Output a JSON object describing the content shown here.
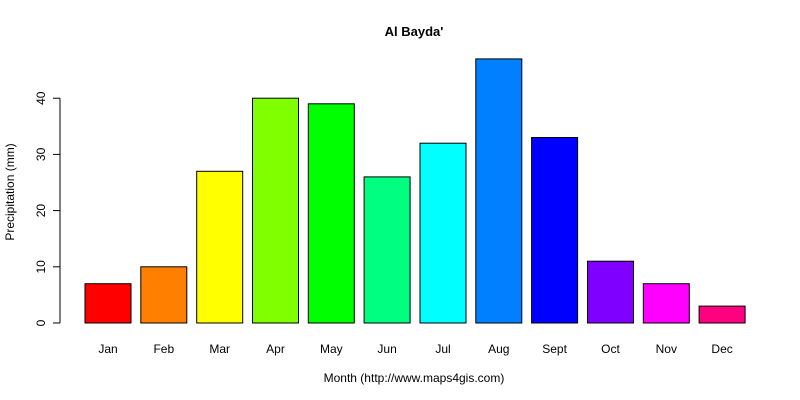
{
  "chart_data": {
    "type": "bar",
    "title": "Al Bayda'",
    "xlabel": "Month (http://www.maps4gis.com)",
    "ylabel": "Precipitation (mm)",
    "categories": [
      "Jan",
      "Feb",
      "Mar",
      "Apr",
      "May",
      "Jun",
      "Jul",
      "Aug",
      "Sept",
      "Oct",
      "Nov",
      "Dec"
    ],
    "values": [
      7,
      10,
      27,
      40,
      39,
      26,
      32,
      47,
      33,
      11,
      7,
      3
    ],
    "colors": [
      "#FF0000",
      "#FF8000",
      "#FFFF00",
      "#80FF00",
      "#00FF00",
      "#00FF80",
      "#00FFFF",
      "#0080FF",
      "#0000FF",
      "#8000FF",
      "#FF00FF",
      "#FF0080"
    ],
    "yticks": [
      0,
      10,
      20,
      30,
      40
    ],
    "ylim": [
      0,
      47
    ],
    "grid": false,
    "legend": "none"
  }
}
